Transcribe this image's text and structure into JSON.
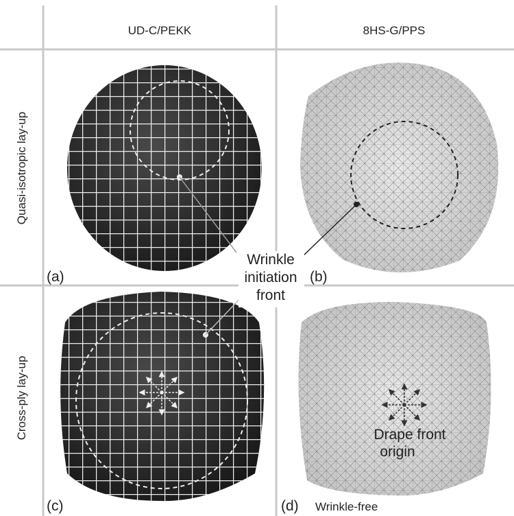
{
  "columns": [
    "UD-C/PEKK",
    "8HS-G/PPS"
  ],
  "rows": [
    "Quasi-isotropic lay-up",
    "Cross-ply lay-up"
  ],
  "panels": [
    "(a)",
    "(b)",
    "(c)",
    "(d)"
  ],
  "annotations": {
    "wrinkle_front": [
      "Wrinkle",
      "initiation",
      "front"
    ],
    "drape_origin": [
      "Drape front",
      "origin"
    ],
    "wrinkle_free": "Wrinkle-free"
  }
}
